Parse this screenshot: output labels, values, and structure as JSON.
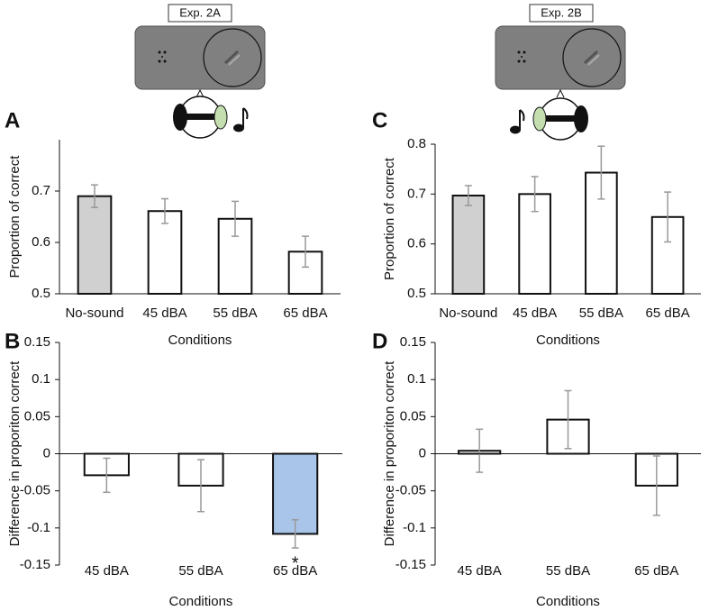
{
  "chart_data": [
    {
      "type": "bar",
      "panel": "A",
      "experiment": "Exp. 2A",
      "y_label": "Proportion of correct",
      "x_label": "Conditions",
      "categories": [
        "No-sound",
        "45 dBA",
        "55 dBA",
        "65 dBA"
      ],
      "values": [
        0.69,
        0.661,
        0.646,
        0.582
      ],
      "errors": [
        0.022,
        0.024,
        0.034,
        0.03
      ],
      "colors": [
        "#d0d0d0",
        "#ffffff",
        "#ffffff",
        "#ffffff"
      ],
      "ylim": [
        0.5,
        0.8
      ],
      "yticks": [
        0.5,
        0.6,
        0.7
      ]
    },
    {
      "type": "bar",
      "panel": "B",
      "y_label": "Difference in proporiton correct",
      "x_label": "Conditions",
      "categories": [
        "45 dBA",
        "55 dBA",
        "65 dBA"
      ],
      "values": [
        -0.029,
        -0.043,
        -0.108
      ],
      "errors": [
        0.023,
        0.035,
        0.019
      ],
      "colors": [
        "#ffffff",
        "#ffffff",
        "#a9c6ea"
      ],
      "annotations": [
        {
          "text": "*",
          "category": "65 dBA"
        }
      ],
      "ylim": [
        -0.15,
        0.15
      ],
      "yticks": [
        -0.15,
        -0.1,
        -0.05,
        0,
        0.05,
        0.1,
        0.15
      ]
    },
    {
      "type": "bar",
      "panel": "C",
      "experiment": "Exp. 2B",
      "y_label": "Proportion of correct",
      "x_label": "Conditions",
      "categories": [
        "No-sound",
        "45 dBA",
        "55 dBA",
        "65 dBA"
      ],
      "values": [
        0.697,
        0.7,
        0.743,
        0.654
      ],
      "errors": [
        0.02,
        0.035,
        0.053,
        0.05
      ],
      "colors": [
        "#d0d0d0",
        "#ffffff",
        "#ffffff",
        "#ffffff"
      ],
      "ylim": [
        0.5,
        0.8
      ],
      "yticks": [
        0.5,
        0.6,
        0.7,
        0.8
      ]
    },
    {
      "type": "bar",
      "panel": "D",
      "y_label": "Difference in proporiton correct",
      "x_label": "Conditions",
      "categories": [
        "45 dBA",
        "55 dBA",
        "65 dBA"
      ],
      "values": [
        0.004,
        0.046,
        -0.043
      ],
      "errors": [
        0.029,
        0.039,
        0.04
      ],
      "colors": [
        "#ffffff",
        "#ffffff",
        "#ffffff"
      ],
      "ylim": [
        -0.15,
        0.15
      ],
      "yticks": [
        -0.15,
        -0.1,
        -0.05,
        0,
        0.05,
        0.1,
        0.15
      ]
    }
  ]
}
